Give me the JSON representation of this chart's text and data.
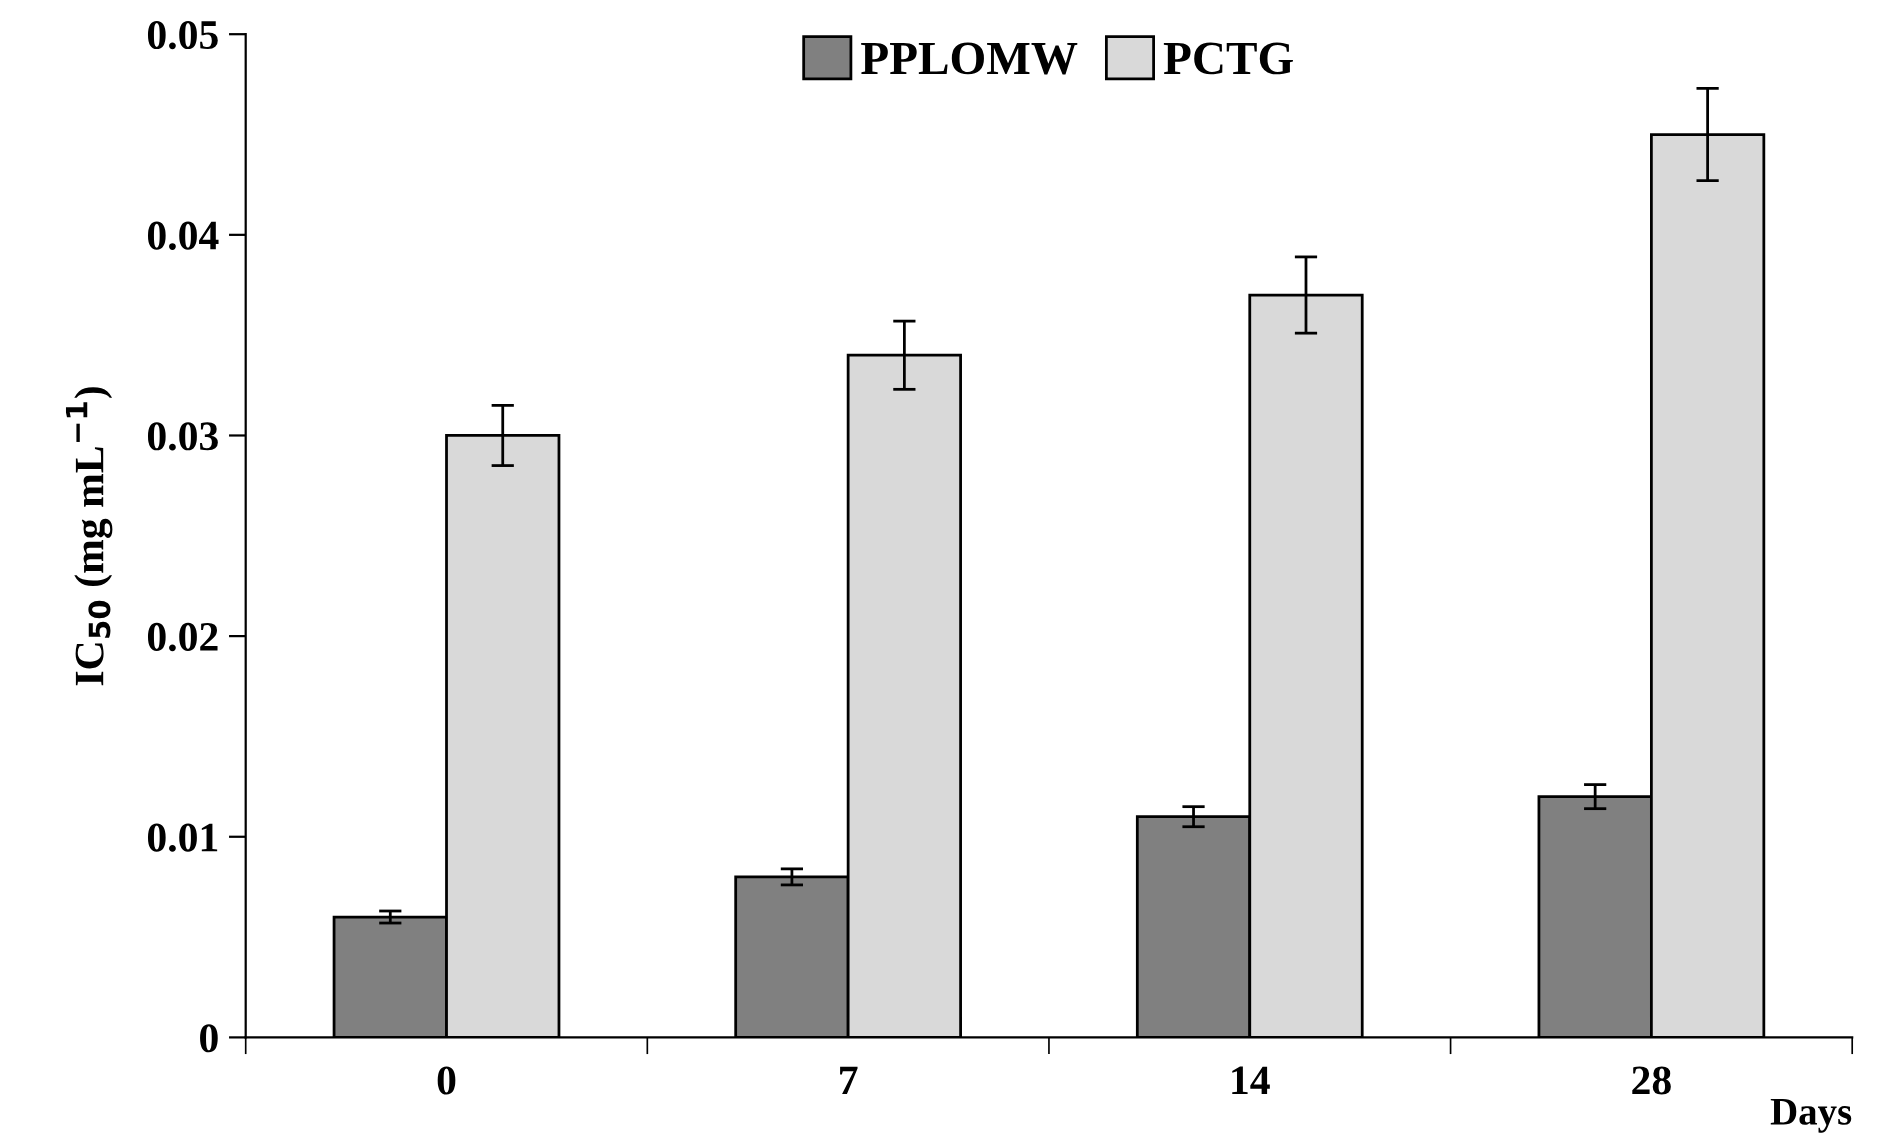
{
  "chart_data": {
    "type": "bar",
    "xlabel": "Days",
    "ylabel": "IC$_{50}$ (mg mL$^{−1}$)",
    "categories": [
      "0",
      "7",
      "14",
      "28"
    ],
    "series": [
      {
        "name": "PPLOMW",
        "color": "#808080",
        "values": [
          0.006,
          0.008,
          0.011,
          0.012
        ],
        "errors": [
          0.0003,
          0.0004,
          0.0005,
          0.0006
        ]
      },
      {
        "name": "PCTG",
        "color": "#d9d9d9",
        "values": [
          0.03,
          0.034,
          0.037,
          0.045
        ],
        "errors": [
          0.0015,
          0.0017,
          0.0019,
          0.0023
        ]
      }
    ],
    "ylim": [
      0,
      0.05
    ],
    "yticks": [
      {
        "value": 0,
        "label": "0"
      },
      0.01,
      0.02,
      0.03,
      0.04,
      0.05
    ],
    "grid": false,
    "legend": "top"
  }
}
